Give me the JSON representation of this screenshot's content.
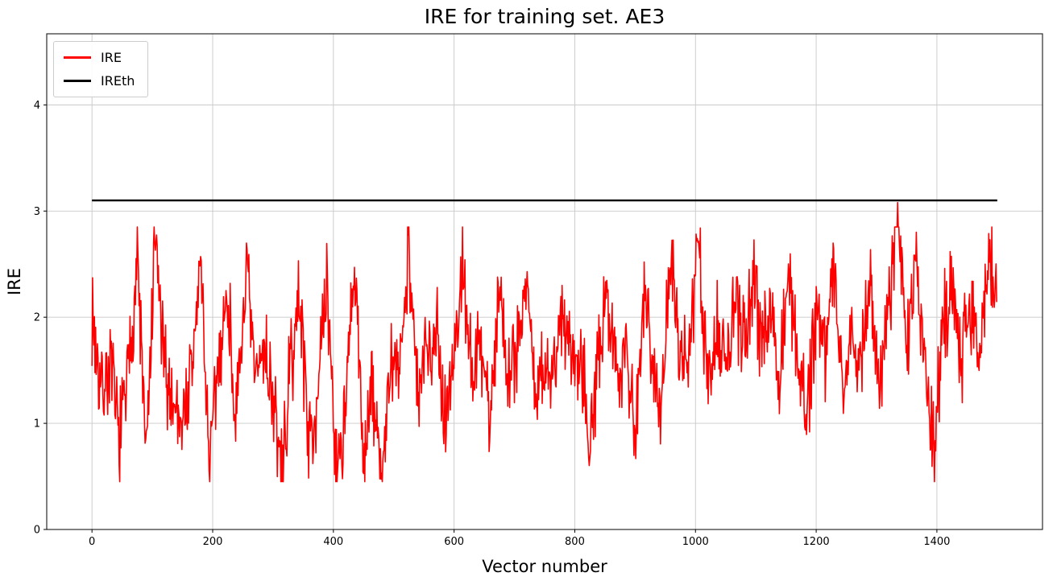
{
  "figure": {
    "background": "#ffffff"
  },
  "chart_data": {
    "type": "line",
    "title": "IRE for training set. AE3",
    "xlabel": "Vector number",
    "ylabel": "IRE",
    "xlim": [
      -75,
      1575
    ],
    "ylim": [
      0,
      4.67
    ],
    "x_ticks": [
      0,
      200,
      400,
      600,
      800,
      1000,
      1200,
      1400
    ],
    "y_ticks": [
      0,
      1,
      2,
      3,
      4
    ],
    "grid": true,
    "grid_color": "#c8c8c8",
    "axes_color": "#000000",
    "legend": {
      "position": "upper left",
      "entries": [
        {
          "label": "IRE",
          "color": "#ff0000"
        },
        {
          "label": "IREth",
          "color": "#000000"
        }
      ]
    },
    "series": [
      {
        "name": "IRE",
        "type": "noisy-line",
        "color": "#ff0000",
        "line_width": 1.6,
        "x_start": 0,
        "x_step": 15,
        "x_end": 1499,
        "sample_values": [
          2.05,
          1.3,
          1.55,
          0.85,
          1.42,
          2.58,
          0.62,
          2.73,
          1.48,
          1.2,
          1.05,
          1.44,
          2.55,
          0.57,
          1.62,
          2.2,
          0.95,
          2.48,
          1.38,
          1.75,
          1.25,
          0.47,
          1.6,
          2.2,
          0.8,
          1.35,
          2.28,
          0.55,
          1.1,
          2.42,
          0.72,
          1.3,
          0.52,
          1.45,
          1.55,
          2.74,
          1.2,
          1.68,
          1.95,
          1.1,
          1.62,
          2.55,
          1.35,
          1.8,
          1.05,
          2.3,
          1.5,
          1.72,
          2.44,
          1.15,
          1.6,
          1.38,
          2.12,
          1.65,
          1.7,
          0.9,
          1.55,
          2.25,
          1.4,
          1.85,
          0.82,
          2.35,
          1.6,
          1.15,
          2.72,
          1.45,
          1.75,
          2.66,
          1.3,
          1.95,
          1.5,
          2.1,
          1.68,
          2.42,
          1.8,
          2.2,
          1.35,
          2.52,
          1.6,
          1.05,
          2.15,
          1.7,
          2.55,
          1.25,
          1.9,
          1.55,
          2.3,
          1.4,
          2.05,
          3.08,
          1.6,
          2.65,
          1.45,
          0.77,
          1.85,
          2.35,
          1.65,
          2.28,
          1.5,
          2.66,
          2.0
        ],
        "noise": {
          "seed": 7,
          "jitter": 0.55,
          "clip_min": 0.45,
          "clip_max": 2.85
        },
        "spike": {
          "x": 1335,
          "value": 3.08
        }
      },
      {
        "name": "IREth",
        "type": "hline",
        "color": "#000000",
        "line_width": 2.4,
        "x_range": [
          0,
          1500
        ],
        "value": 3.1
      }
    ]
  }
}
